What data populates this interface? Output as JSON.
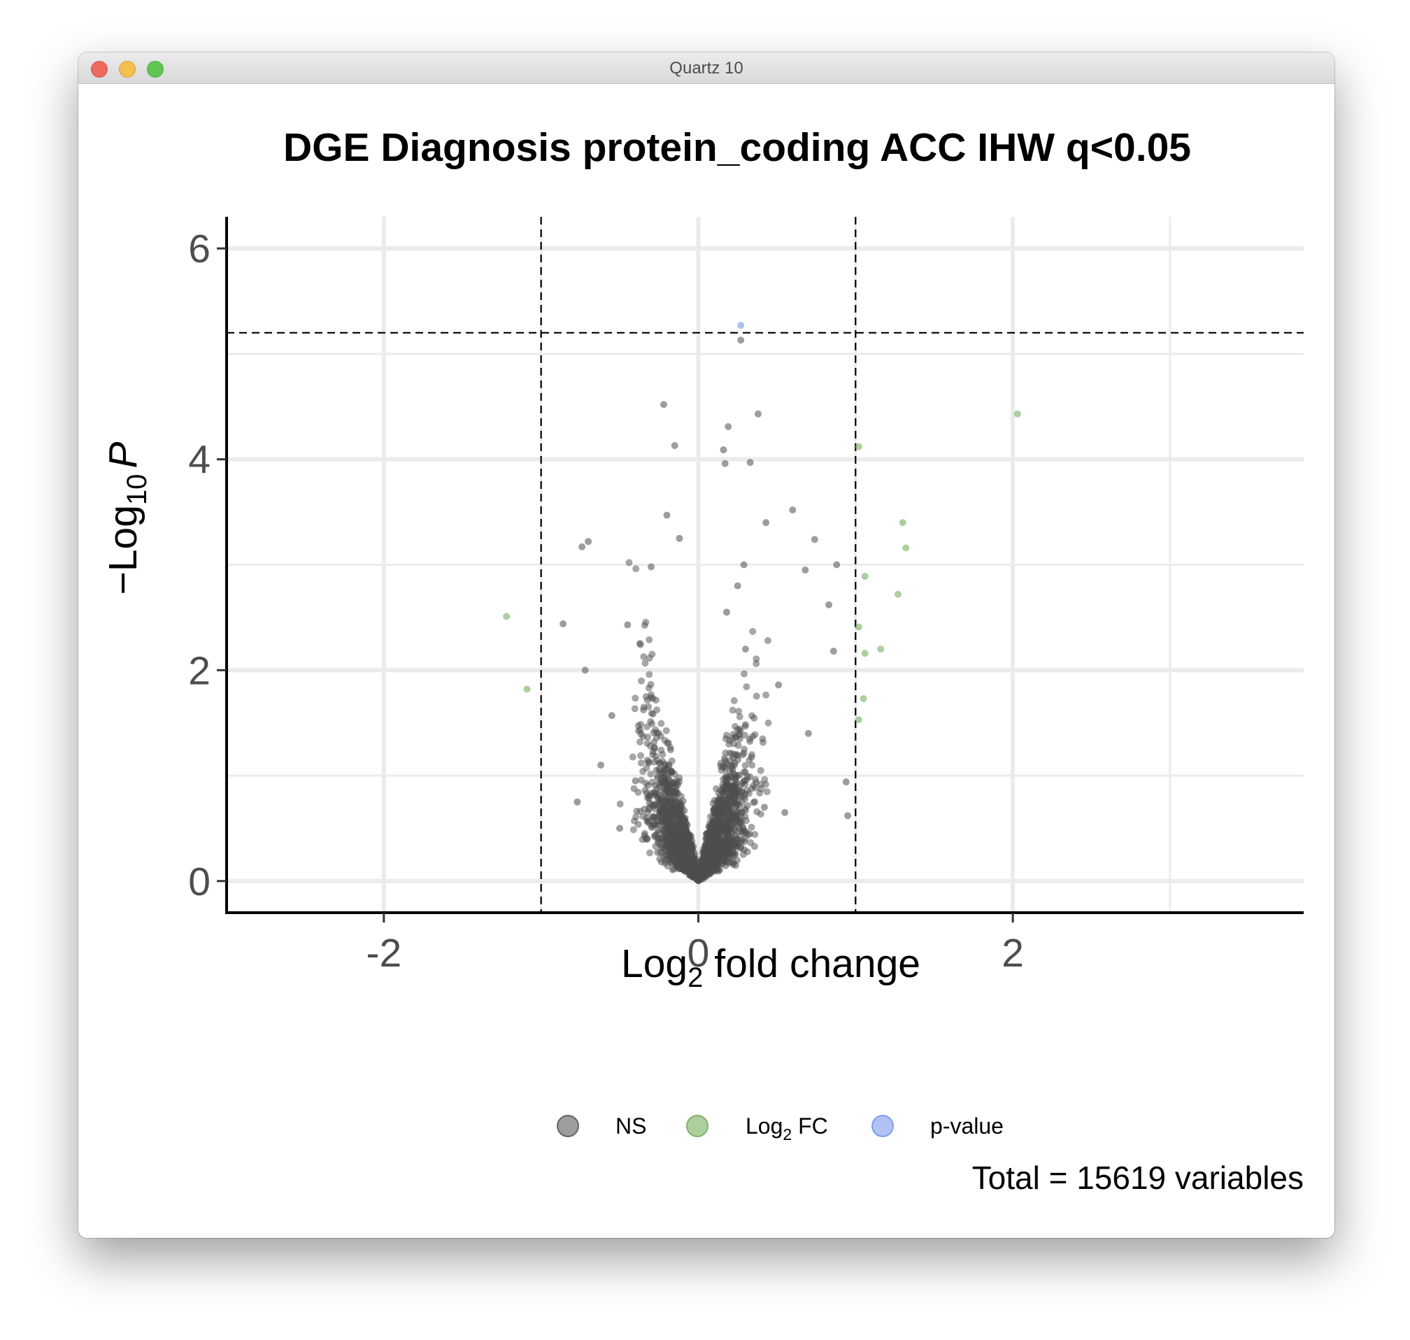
{
  "window": {
    "title": "Quartz 10"
  },
  "chart_data": {
    "type": "scatter",
    "title": "DGE Diagnosis protein_coding ACC IHW q<0.05",
    "xlabel": {
      "main": "Log",
      "sub": "2",
      "rest": " fold change"
    },
    "ylabel": {
      "prefix": "−Log",
      "sub": "10",
      "var": "P"
    },
    "xlim": [
      -3.0,
      3.85
    ],
    "ylim": [
      -0.3,
      6.3
    ],
    "x_ticks": [
      -2,
      0,
      2
    ],
    "x_tick_labels": [
      "-2",
      "0",
      "2"
    ],
    "y_ticks": [
      0,
      2,
      4,
      6
    ],
    "y_tick_labels": [
      "0",
      "2",
      "4",
      "6"
    ],
    "grid": true,
    "vlines_log2fc": [
      -1,
      1
    ],
    "hline_neglog10p": 5.2,
    "legend_position": "bottom",
    "caption": "Total = 15619 variables",
    "series": [
      {
        "name": "NS",
        "legend_parts": [
          "NS"
        ],
        "color": "#4d4d4d",
        "points": [
          [
            -0.22,
            4.52
          ],
          [
            -0.15,
            4.13
          ],
          [
            0.38,
            4.43
          ],
          [
            0.19,
            4.31
          ],
          [
            0.16,
            4.09
          ],
          [
            0.17,
            3.96
          ],
          [
            0.33,
            3.97
          ],
          [
            0.27,
            5.13
          ],
          [
            -0.2,
            3.47
          ],
          [
            -0.12,
            3.25
          ],
          [
            -0.7,
            3.22
          ],
          [
            -0.74,
            3.17
          ],
          [
            0.6,
            3.52
          ],
          [
            0.43,
            3.4
          ],
          [
            0.74,
            3.24
          ],
          [
            -0.3,
            2.98
          ],
          [
            0.88,
            3.0
          ],
          [
            -0.86,
            2.44
          ],
          [
            -0.72,
            2.0
          ],
          [
            -0.77,
            0.75
          ],
          [
            0.94,
            0.94
          ],
          [
            0.95,
            0.62
          ],
          [
            0.83,
            2.62
          ],
          [
            0.86,
            2.18
          ],
          [
            0.68,
            2.95
          ],
          [
            -0.55,
            1.57
          ],
          [
            -0.45,
            2.43
          ],
          [
            0.51,
            1.86
          ],
          [
            -0.62,
            1.1
          ],
          [
            0.7,
            1.4
          ],
          [
            -0.4,
            0.95
          ],
          [
            0.42,
            0.7
          ],
          [
            -0.5,
            0.5
          ],
          [
            0.55,
            0.65
          ],
          [
            0.25,
            2.8
          ],
          [
            0.18,
            2.55
          ],
          [
            0.29,
            3.0
          ],
          [
            0.3,
            2.2
          ]
        ]
      },
      {
        "name": "Log2 FC",
        "legend_parts": [
          "Log",
          "2",
          " FC"
        ],
        "color": "#6aa84f",
        "points": [
          [
            2.03,
            4.43
          ],
          [
            1.02,
            4.12
          ],
          [
            1.3,
            3.4
          ],
          [
            1.32,
            3.16
          ],
          [
            1.06,
            2.89
          ],
          [
            1.27,
            2.72
          ],
          [
            1.02,
            2.41
          ],
          [
            1.06,
            2.16
          ],
          [
            1.16,
            2.2
          ],
          [
            1.05,
            1.73
          ],
          [
            1.02,
            1.53
          ],
          [
            -1.22,
            2.51
          ],
          [
            -1.09,
            1.82
          ]
        ]
      },
      {
        "name": "p-value",
        "legend_parts": [
          "p-value"
        ],
        "color": "#6d8fe8",
        "points": [
          [
            0.27,
            5.27
          ]
        ]
      }
    ]
  }
}
